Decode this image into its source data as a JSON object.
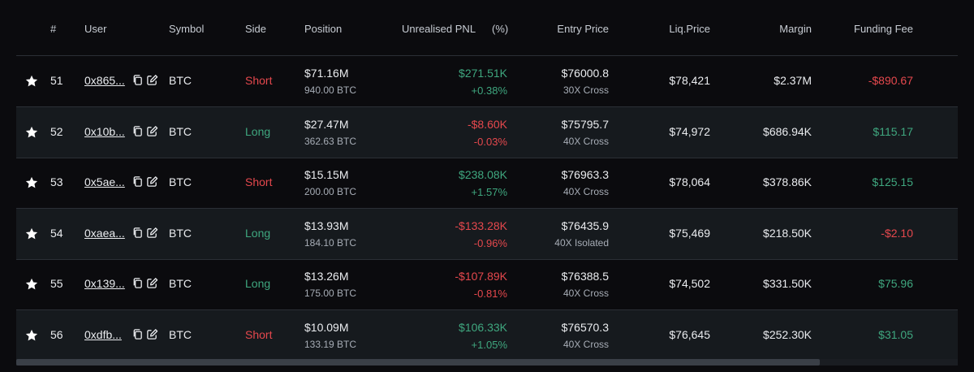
{
  "table": {
    "headers": {
      "num": "#",
      "user": "User",
      "symbol": "Symbol",
      "side": "Side",
      "position": "Position",
      "pnl": "Unrealised PNL",
      "pct": "(%)",
      "entry": "Entry Price",
      "liq": "Liq.Price",
      "margin": "Margin",
      "funding": "Funding Fee"
    },
    "rows": [
      {
        "num": "51",
        "user": "0x865...",
        "symbol": "BTC",
        "side": "Short",
        "position": "$71.16M",
        "position_btc": "940.00 BTC",
        "pnl": "$271.51K",
        "pnl_pct": "+0.38%",
        "pnl_positive": true,
        "entry": "$76000.8",
        "leverage": "30X Cross",
        "liq": "$78,421",
        "margin": "$2.37M",
        "funding": "-$890.67",
        "funding_positive": false
      },
      {
        "num": "52",
        "user": "0x10b...",
        "symbol": "BTC",
        "side": "Long",
        "position": "$27.47M",
        "position_btc": "362.63 BTC",
        "pnl": "-$8.60K",
        "pnl_pct": "-0.03%",
        "pnl_positive": false,
        "entry": "$75795.7",
        "leverage": "40X Cross",
        "liq": "$74,972",
        "margin": "$686.94K",
        "funding": "$115.17",
        "funding_positive": true
      },
      {
        "num": "53",
        "user": "0x5ae...",
        "symbol": "BTC",
        "side": "Short",
        "position": "$15.15M",
        "position_btc": "200.00 BTC",
        "pnl": "$238.08K",
        "pnl_pct": "+1.57%",
        "pnl_positive": true,
        "entry": "$76963.3",
        "leverage": "40X Cross",
        "liq": "$78,064",
        "margin": "$378.86K",
        "funding": "$125.15",
        "funding_positive": true
      },
      {
        "num": "54",
        "user": "0xaea...",
        "symbol": "BTC",
        "side": "Long",
        "position": "$13.93M",
        "position_btc": "184.10 BTC",
        "pnl": "-$133.28K",
        "pnl_pct": "-0.96%",
        "pnl_positive": false,
        "entry": "$76435.9",
        "leverage": "40X Isolated",
        "liq": "$75,469",
        "margin": "$218.50K",
        "funding": "-$2.10",
        "funding_positive": false
      },
      {
        "num": "55",
        "user": "0x139...",
        "symbol": "BTC",
        "side": "Long",
        "position": "$13.26M",
        "position_btc": "175.00 BTC",
        "pnl": "-$107.89K",
        "pnl_pct": "-0.81%",
        "pnl_positive": false,
        "entry": "$76388.5",
        "leverage": "40X Cross",
        "liq": "$74,502",
        "margin": "$331.50K",
        "funding": "$75.96",
        "funding_positive": true
      },
      {
        "num": "56",
        "user": "0xdfb...",
        "symbol": "BTC",
        "side": "Short",
        "position": "$10.09M",
        "position_btc": "133.19 BTC",
        "pnl": "$106.33K",
        "pnl_pct": "+1.05%",
        "pnl_positive": true,
        "entry": "$76570.3",
        "leverage": "40X Cross",
        "liq": "$76,645",
        "margin": "$252.30K",
        "funding": "$31.05",
        "funding_positive": true
      }
    ]
  },
  "colors": {
    "short": "#e5484d",
    "long": "#3fa77f",
    "positive": "#3fa77f",
    "negative": "#e5484d"
  },
  "icons": {
    "favorite": "star-icon",
    "copy": "copy-icon",
    "edit": "edit-icon"
  }
}
